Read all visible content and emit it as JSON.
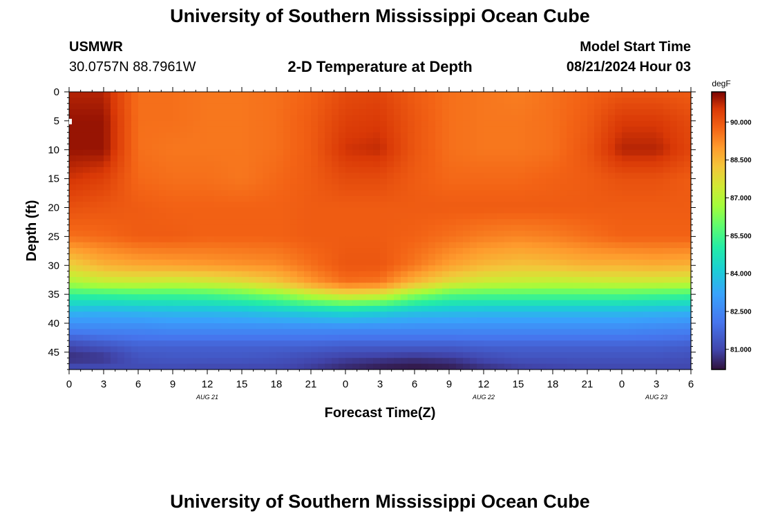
{
  "page": {
    "title_top": "University of Southern Mississippi Ocean Cube",
    "title_bottom": "University of Southern Mississippi Ocean Cube",
    "station": "USMWR",
    "coords": "30.0757N  88.7961W",
    "subtitle": "2-D Temperature at Depth",
    "model_label": "Model Start Time",
    "model_time": "08/21/2024 Hour 03"
  },
  "chart_data": {
    "type": "heatmap",
    "title": "2-D Temperature at Depth",
    "xlabel": "Forecast Time(Z)",
    "ylabel": "Depth (ft)",
    "x_ticks": [
      "0",
      "3",
      "6",
      "9",
      "12",
      "15",
      "18",
      "21",
      "0",
      "3",
      "6",
      "9",
      "12",
      "15",
      "18",
      "21",
      "0",
      "3",
      "6"
    ],
    "x_range_hours": [
      0,
      54
    ],
    "date_labels": [
      {
        "label": "AUG 21",
        "hour": 12
      },
      {
        "label": "AUG 22",
        "hour": 36
      },
      {
        "label": "AUG 23",
        "hour": 51
      }
    ],
    "y_ticks": [
      "0",
      "5",
      "10",
      "15",
      "20",
      "25",
      "30",
      "35",
      "40",
      "45"
    ],
    "y_range": [
      0,
      48
    ],
    "colorbar": {
      "unit": "degF",
      "min": 80.2,
      "max": 91.2,
      "ticks": [
        "90.000",
        "88.500",
        "87.000",
        "85.500",
        "84.000",
        "82.500",
        "81.000"
      ],
      "tick_values": [
        90.0,
        88.5,
        87.0,
        85.5,
        84.0,
        82.5,
        81.0
      ]
    },
    "hours": [
      0,
      3,
      6,
      9,
      12,
      15,
      18,
      21,
      24,
      27,
      30,
      33,
      36,
      39,
      42,
      45,
      48,
      51,
      54
    ],
    "depths": [
      0,
      5,
      10,
      15,
      20,
      25,
      30,
      33,
      35,
      38,
      41,
      44,
      46,
      48
    ],
    "temperature_degF": [
      [
        90.8,
        90.8,
        89.6,
        89.6,
        89.5,
        89.5,
        89.6,
        89.8,
        90.2,
        90.3,
        89.9,
        89.6,
        89.5,
        89.4,
        89.6,
        89.8,
        90.0,
        90.0,
        89.9
      ],
      [
        91.0,
        91.0,
        89.6,
        89.6,
        89.5,
        89.5,
        89.6,
        89.9,
        90.4,
        90.5,
        90.0,
        89.6,
        89.5,
        89.5,
        89.6,
        89.9,
        90.5,
        90.5,
        90.2
      ],
      [
        91.0,
        91.0,
        89.6,
        89.5,
        89.5,
        89.5,
        89.6,
        89.9,
        90.6,
        90.7,
        90.0,
        89.6,
        89.5,
        89.5,
        89.6,
        90.0,
        90.8,
        90.8,
        90.3
      ],
      [
        90.6,
        90.4,
        89.7,
        89.6,
        89.6,
        89.5,
        89.7,
        89.9,
        90.2,
        90.2,
        89.9,
        89.7,
        89.7,
        89.7,
        89.8,
        89.9,
        90.1,
        90.1,
        89.9
      ],
      [
        90.1,
        90.0,
        89.9,
        89.8,
        89.8,
        89.8,
        89.8,
        89.9,
        89.9,
        89.9,
        89.9,
        89.9,
        89.9,
        89.9,
        89.9,
        89.9,
        89.9,
        89.9,
        89.9
      ],
      [
        89.6,
        89.7,
        89.9,
        89.9,
        89.8,
        89.8,
        89.8,
        89.9,
        89.9,
        89.9,
        89.8,
        89.6,
        89.4,
        89.3,
        89.4,
        89.6,
        89.8,
        89.8,
        89.8
      ],
      [
        88.0,
        88.6,
        88.8,
        88.9,
        89.0,
        89.1,
        89.2,
        89.6,
        90.0,
        90.0,
        89.5,
        88.9,
        88.5,
        88.3,
        88.4,
        88.6,
        88.6,
        88.7,
        88.6
      ],
      [
        86.8,
        87.2,
        87.3,
        87.2,
        87.4,
        87.7,
        88.2,
        89.0,
        89.6,
        89.5,
        88.5,
        87.7,
        87.3,
        87.2,
        87.1,
        87.2,
        87.3,
        87.3,
        87.2
      ],
      [
        85.3,
        85.4,
        85.5,
        85.5,
        85.6,
        85.9,
        86.4,
        87.2,
        87.8,
        87.6,
        86.5,
        85.8,
        85.7,
        85.7,
        85.7,
        85.7,
        85.7,
        85.6,
        85.5
      ],
      [
        83.6,
        83.5,
        83.6,
        83.7,
        83.7,
        83.8,
        84.0,
        84.2,
        84.4,
        84.2,
        83.9,
        83.8,
        83.7,
        83.7,
        83.7,
        83.7,
        83.7,
        83.6,
        83.5
      ],
      [
        82.4,
        82.5,
        82.5,
        82.6,
        82.6,
        82.6,
        82.6,
        82.6,
        82.6,
        82.6,
        82.6,
        82.6,
        82.6,
        82.6,
        82.6,
        82.6,
        82.6,
        82.5,
        82.4
      ],
      [
        81.0,
        81.3,
        81.6,
        81.6,
        81.6,
        81.6,
        81.6,
        81.6,
        81.5,
        81.5,
        81.5,
        81.5,
        81.6,
        81.6,
        81.6,
        81.6,
        81.6,
        81.6,
        81.5
      ],
      [
        80.6,
        80.7,
        81.3,
        81.4,
        81.4,
        81.4,
        81.3,
        81.1,
        80.9,
        80.8,
        80.7,
        80.8,
        81.1,
        81.3,
        81.3,
        81.3,
        81.3,
        81.3,
        81.2
      ],
      [
        81.2,
        81.2,
        81.1,
        81.1,
        81.0,
        81.0,
        81.0,
        80.8,
        80.5,
        80.3,
        80.2,
        80.3,
        80.6,
        80.8,
        80.9,
        81.0,
        81.0,
        81.0,
        81.0
      ]
    ]
  }
}
